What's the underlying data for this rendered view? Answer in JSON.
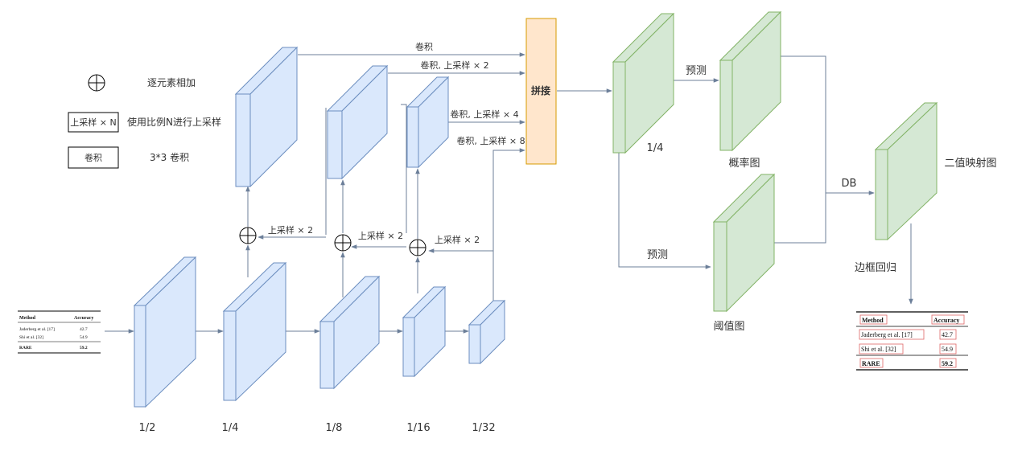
{
  "legend": {
    "add_text": "逐元素相加",
    "upsample_box": "上采样 × N",
    "upsample_text": "使用比例N进行上采样",
    "conv_box": "卷积",
    "conv_text": "3*3 卷积"
  },
  "input_table": {
    "header": [
      "Method",
      "Accuracy"
    ],
    "rows": [
      {
        "method": "Jaderberg et al. [17]",
        "acc": "42.7"
      },
      {
        "method": "Shi et al. [32]",
        "acc": "54.9"
      },
      {
        "method": "RARE",
        "acc": "59.2"
      }
    ]
  },
  "output_table": {
    "header": [
      "Method",
      "Accuracy"
    ],
    "rows": [
      {
        "method": "Jaderberg et al. [17]",
        "acc": "42.7"
      },
      {
        "method": "Shi et al. [32]",
        "acc": "54.9"
      },
      {
        "method": "RARE",
        "acc": "59.2"
      }
    ]
  },
  "backbone_scales": [
    "1/2",
    "1/4",
    "1/8",
    "1/16",
    "1/32"
  ],
  "fpn": {
    "conv": "卷积",
    "conv_up2": "卷积, 上采样 × 2",
    "conv_up4": "卷积, 上采样 × 4",
    "conv_up8": "卷积, 上采样 × 8",
    "up2_a": "上采样 × 2",
    "up2_b": "上采样 × 2",
    "up2_c": "上采样 × 2"
  },
  "concat": "拼接",
  "head": {
    "feature_scale": "1/4",
    "predict_prob": "预测",
    "predict_thresh": "预测",
    "prob_map": "概率图",
    "thresh_map": "阈值图",
    "db": "DB",
    "binary_map": "二值映射图",
    "box_regression": "边框回归"
  },
  "colors": {
    "blue_fill": "#dae8fc",
    "blue_stroke": "#6c8ebf",
    "green_fill": "#d5e8d4",
    "green_stroke": "#82b366",
    "orange_fill": "#ffe6cc",
    "orange_stroke": "#d79b00",
    "arrow": "#6c7f99"
  }
}
